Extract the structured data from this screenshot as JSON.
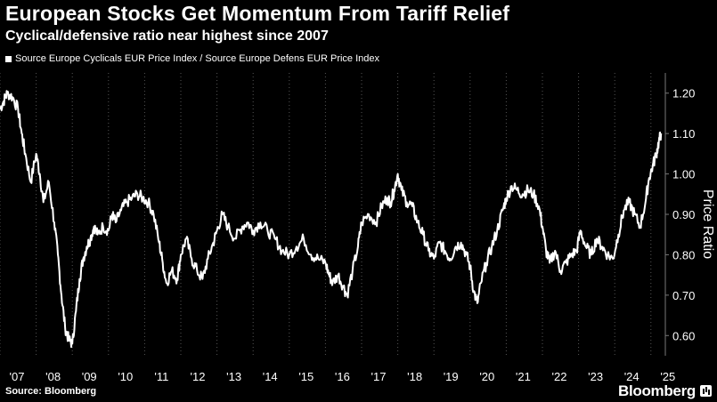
{
  "header": {
    "title": "European Stocks Get Momentum From Tariff Relief",
    "subtitle": "Cyclical/defensive ratio near highest since 2007"
  },
  "legend": {
    "label": "Source Europe Cyclicals EUR Price Index / Source Europe Defens EUR Price Index"
  },
  "footer": {
    "source": "Source: Bloomberg",
    "brand": "Bloomberg"
  },
  "colors": {
    "background": "#000000",
    "line": "#ffffff",
    "grid": "#555555"
  },
  "chart_data": {
    "type": "line",
    "ylabel": "Price Ratio",
    "ylim": [
      0.55,
      1.25
    ],
    "xlim": [
      2007.0,
      2025.35
    ],
    "y_ticks": [
      0.6,
      0.7,
      0.8,
      0.9,
      1.0,
      1.1,
      1.2
    ],
    "y_tick_labels": [
      "0.60",
      "0.70",
      "0.80",
      "0.90",
      "1.00",
      "1.10",
      "1.20"
    ],
    "x_ticks": [
      2007,
      2008,
      2009,
      2010,
      2011,
      2012,
      2013,
      2014,
      2015,
      2016,
      2017,
      2018,
      2019,
      2020,
      2021,
      2022,
      2023,
      2024,
      2025
    ],
    "x_tick_labels": [
      "'07",
      "'08",
      "'09",
      "'10",
      "'11",
      "'12",
      "'13",
      "'14",
      "'15",
      "'16",
      "'17",
      "'18",
      "'19",
      "'20",
      "'21",
      "'22",
      "'23",
      "'24",
      "'25"
    ],
    "grid": "vertical dotted at each year",
    "y_axis_position": "right",
    "series": [
      {
        "x": [
          2007.0,
          2007.1,
          2007.2,
          2007.35,
          2007.5,
          2007.6,
          2007.7,
          2007.85,
          2008.0,
          2008.1,
          2008.2,
          2008.35,
          2008.5,
          2008.6,
          2008.7,
          2008.8,
          2008.9,
          2009.0,
          2009.1,
          2009.2,
          2009.3,
          2009.4,
          2009.5,
          2009.6,
          2009.7,
          2009.85,
          2010.0,
          2010.1,
          2010.2,
          2010.35,
          2010.5,
          2010.65,
          2010.8,
          2010.95,
          2011.1,
          2011.25,
          2011.4,
          2011.5,
          2011.6,
          2011.75,
          2011.9,
          2012.0,
          2012.15,
          2012.3,
          2012.45,
          2012.6,
          2012.75,
          2012.9,
          2013.0,
          2013.15,
          2013.3,
          2013.5,
          2013.7,
          2013.85,
          2014.0,
          2014.2,
          2014.4,
          2014.6,
          2014.8,
          2015.0,
          2015.2,
          2015.4,
          2015.6,
          2015.8,
          2016.0,
          2016.1,
          2016.2,
          2016.35,
          2016.5,
          2016.6,
          2016.75,
          2016.9,
          2017.0,
          2017.2,
          2017.4,
          2017.55,
          2017.7,
          2017.8,
          2017.9,
          2018.0,
          2018.1,
          2018.25,
          2018.4,
          2018.55,
          2018.7,
          2018.85,
          2019.0,
          2019.15,
          2019.3,
          2019.45,
          2019.6,
          2019.75,
          2019.9,
          2020.0,
          2020.1,
          2020.2,
          2020.3,
          2020.45,
          2020.6,
          2020.75,
          2020.9,
          2021.0,
          2021.15,
          2021.3,
          2021.45,
          2021.6,
          2021.75,
          2021.9,
          2022.0,
          2022.1,
          2022.2,
          2022.35,
          2022.5,
          2022.65,
          2022.8,
          2022.95,
          2023.05,
          2023.2,
          2023.35,
          2023.5,
          2023.65,
          2023.8,
          2023.95,
          2024.1,
          2024.25,
          2024.4,
          2024.55,
          2024.7,
          2024.85,
          2024.95,
          2025.05,
          2025.15,
          2025.22,
          2025.28
        ],
        "y": [
          1.16,
          1.18,
          1.2,
          1.19,
          1.16,
          1.1,
          1.05,
          0.98,
          1.05,
          1.0,
          0.93,
          0.98,
          0.88,
          0.8,
          0.7,
          0.62,
          0.59,
          0.58,
          0.66,
          0.74,
          0.79,
          0.82,
          0.84,
          0.87,
          0.85,
          0.87,
          0.86,
          0.9,
          0.88,
          0.91,
          0.93,
          0.94,
          0.95,
          0.94,
          0.93,
          0.9,
          0.83,
          0.78,
          0.73,
          0.76,
          0.74,
          0.8,
          0.84,
          0.79,
          0.76,
          0.74,
          0.79,
          0.83,
          0.86,
          0.9,
          0.87,
          0.84,
          0.87,
          0.88,
          0.86,
          0.88,
          0.86,
          0.84,
          0.81,
          0.8,
          0.82,
          0.84,
          0.8,
          0.79,
          0.78,
          0.75,
          0.73,
          0.75,
          0.72,
          0.7,
          0.76,
          0.82,
          0.88,
          0.9,
          0.88,
          0.92,
          0.94,
          0.93,
          0.96,
          1.0,
          0.96,
          0.93,
          0.92,
          0.88,
          0.85,
          0.81,
          0.79,
          0.83,
          0.81,
          0.79,
          0.82,
          0.83,
          0.8,
          0.77,
          0.71,
          0.68,
          0.73,
          0.78,
          0.82,
          0.86,
          0.91,
          0.94,
          0.97,
          0.96,
          0.95,
          0.96,
          0.95,
          0.92,
          0.87,
          0.81,
          0.78,
          0.81,
          0.76,
          0.78,
          0.8,
          0.81,
          0.86,
          0.82,
          0.8,
          0.84,
          0.82,
          0.8,
          0.79,
          0.85,
          0.91,
          0.93,
          0.9,
          0.87,
          0.93,
          0.99,
          1.02,
          1.05,
          1.08,
          1.1
        ]
      }
    ]
  }
}
